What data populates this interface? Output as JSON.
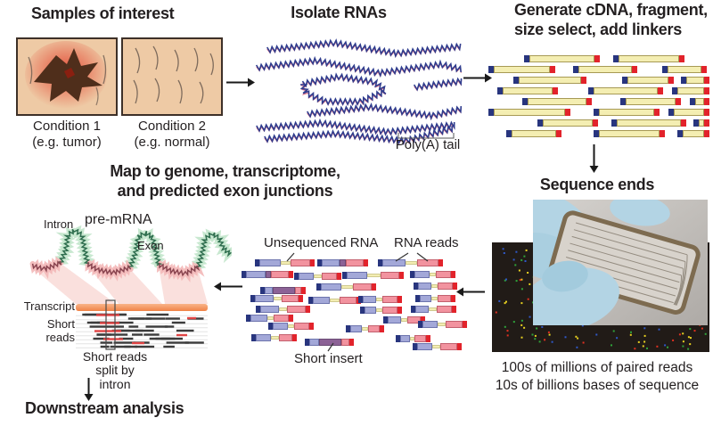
{
  "figure": {
    "samples": {
      "title": "Samples of interest",
      "condition1": "Condition 1",
      "condition1_sub": "(e.g. tumor)",
      "condition2": "Condition 2",
      "condition2_sub": "(e.g. normal)"
    },
    "isolate": {
      "title": "Isolate RNAs",
      "polya": "Poly(A) tail"
    },
    "cdna": {
      "title1": "Generate cDNA, fragment,",
      "title2": "size select, add linkers"
    },
    "sequence": {
      "title": "Sequence ends",
      "stat1": "100s of millions of paired reads",
      "stat2": "10s of billions bases of sequence"
    },
    "reads": {
      "unsequenced": "Unsequenced RNA",
      "rna_reads": "RNA reads",
      "short_insert": "Short insert"
    },
    "mapping": {
      "title1": "Map to genome, transcriptome,",
      "title2": "and predicted exon junctions",
      "intron": "Intron",
      "premrna": "pre-mRNA",
      "exon": "Exon",
      "transcript": "Transcript",
      "short_reads": "Short reads",
      "split1": "Short reads",
      "split2": "split by intron"
    },
    "downstream": {
      "title": "Downstream analysis"
    }
  },
  "colors": {
    "ink": "#231f20",
    "skin": "#eecaa5",
    "panel_border": "#3d3028",
    "tumor_brown": "#4f2e1b",
    "tumor_glow": "#e23b28",
    "hair": "#6b5b50",
    "rna_blue": "#2f3d8e",
    "rna_red": "#d85a70",
    "cdna_yellow": "#f4eeb2",
    "cdna_border": "#a79a55",
    "cap_blue": "#28357e",
    "cap_red": "#e2232b",
    "read_blue": "#a3a8d8",
    "read_blue_border": "#6d74ad",
    "read_pink": "#f2939f",
    "read_pink_border": "#c3606e",
    "overlap_purple": "#8c6296",
    "overlap_border": "#6a4a74",
    "connector_yellow": "#f3edb2",
    "transcript_orange": "#f08347",
    "transcript_light": "#f9b488",
    "funnel_pink": "#f7cdc8",
    "intron_green": "#2f6e4f",
    "intron_glow": "#c2e5cb",
    "exon_red": "#8a4550",
    "exon_glow": "#f3b8b8",
    "short_read_dark": "#3c3c3c",
    "short_read_red": "#e04545",
    "glove_blue": "#b3d4e4",
    "glove_shade": "#8fb9cf",
    "dark_bg": "#211b17",
    "dot_colors": [
      "#e03020",
      "#2fa33a",
      "#e8d020",
      "#2f58c8"
    ],
    "arrow": "#1a1a1a"
  }
}
